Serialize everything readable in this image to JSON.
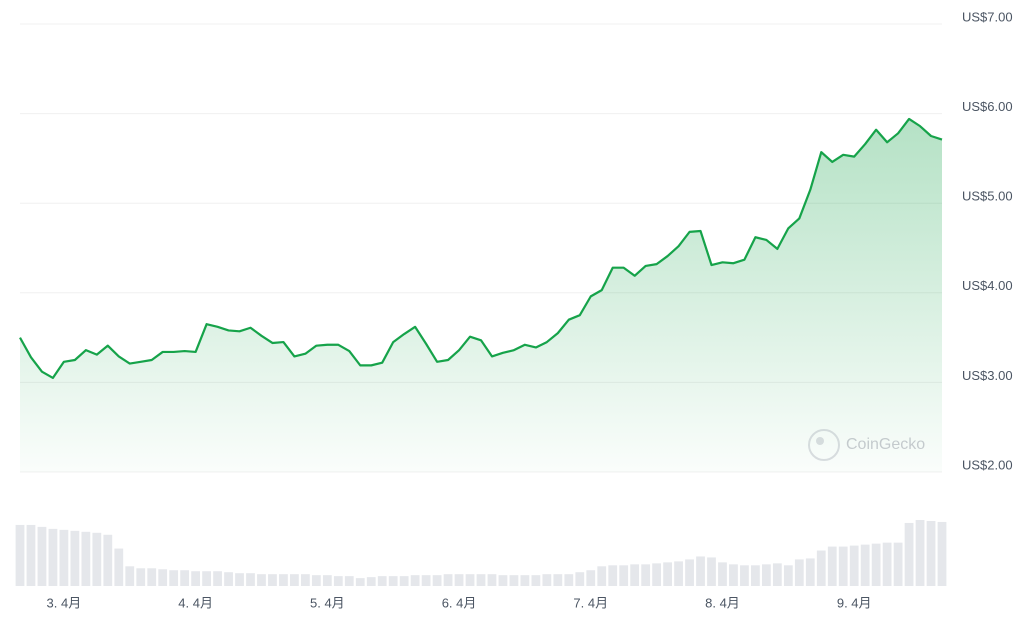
{
  "chart_data": {
    "type": "line",
    "categories": [
      null,
      null,
      null,
      null,
      "3. 4月",
      null,
      null,
      null,
      null,
      null,
      null,
      null,
      null,
      null,
      null,
      null,
      "4. 4月",
      null,
      null,
      null,
      null,
      null,
      null,
      null,
      null,
      null,
      null,
      null,
      "5. 4月",
      null,
      null,
      null,
      null,
      null,
      null,
      null,
      null,
      null,
      null,
      null,
      "6. 4月",
      null,
      null,
      null,
      null,
      null,
      null,
      null,
      null,
      null,
      null,
      null,
      "7. 4月",
      null,
      null,
      null,
      null,
      null,
      null,
      null,
      null,
      null,
      null,
      null,
      "8. 4月",
      null,
      null,
      null,
      null,
      null,
      null,
      null,
      null,
      null,
      null,
      null,
      "9. 4月",
      null,
      null,
      null,
      null,
      null,
      null,
      null,
      null
    ],
    "values": [
      3.5,
      3.28,
      3.12,
      3.05,
      3.23,
      3.25,
      3.36,
      3.31,
      3.41,
      3.29,
      3.21,
      3.23,
      3.25,
      3.34,
      3.34,
      3.35,
      3.34,
      3.65,
      3.62,
      3.58,
      3.57,
      3.61,
      3.52,
      3.44,
      3.45,
      3.29,
      3.32,
      3.41,
      3.42,
      3.42,
      3.35,
      3.19,
      3.19,
      3.22,
      3.45,
      3.54,
      3.62,
      3.43,
      3.23,
      3.25,
      3.36,
      3.51,
      3.47,
      3.29,
      3.33,
      3.36,
      3.42,
      3.39,
      3.45,
      3.55,
      3.7,
      3.75,
      3.96,
      4.03,
      4.28,
      4.28,
      4.19,
      4.3,
      4.32,
      4.41,
      4.52,
      4.68,
      4.69,
      4.31,
      4.34,
      4.33,
      4.37,
      4.62,
      4.59,
      4.49,
      4.72,
      4.83,
      5.15,
      5.57,
      5.46,
      5.54,
      5.52,
      5.66,
      5.82,
      5.68,
      5.78,
      5.94,
      5.86,
      5.75,
      5.71
    ],
    "color": "#16a34a",
    "volume": {
      "color": "#e5e7eb",
      "values": [
        62,
        62,
        60,
        58,
        57,
        56,
        55,
        54,
        52,
        38,
        20,
        18,
        18,
        17,
        16,
        16,
        15,
        15,
        15,
        14,
        13,
        13,
        12,
        12,
        12,
        12,
        12,
        11,
        11,
        10,
        10,
        8,
        9,
        10,
        10,
        10,
        11,
        11,
        11,
        12,
        12,
        12,
        12,
        12,
        11,
        11,
        11,
        11,
        12,
        12,
        12,
        14,
        16,
        20,
        21,
        21,
        22,
        22,
        23,
        24,
        25,
        27,
        30,
        29,
        24,
        22,
        21,
        21,
        22,
        23,
        21,
        27,
        28,
        36,
        40,
        40,
        41,
        42,
        43,
        44,
        44,
        64,
        67,
        66,
        65
      ]
    },
    "ylim": [
      2,
      7
    ],
    "yticks": [
      {
        "value": 2,
        "label": "US$2.00"
      },
      {
        "value": 3,
        "label": "US$3.00"
      },
      {
        "value": 4,
        "label": "US$4.00"
      },
      {
        "value": 5,
        "label": "US$5.00"
      },
      {
        "value": 6,
        "label": "US$6.00"
      },
      {
        "value": 7,
        "label": "US$7.00"
      }
    ],
    "grid": true,
    "watermark": "CoinGecko"
  }
}
